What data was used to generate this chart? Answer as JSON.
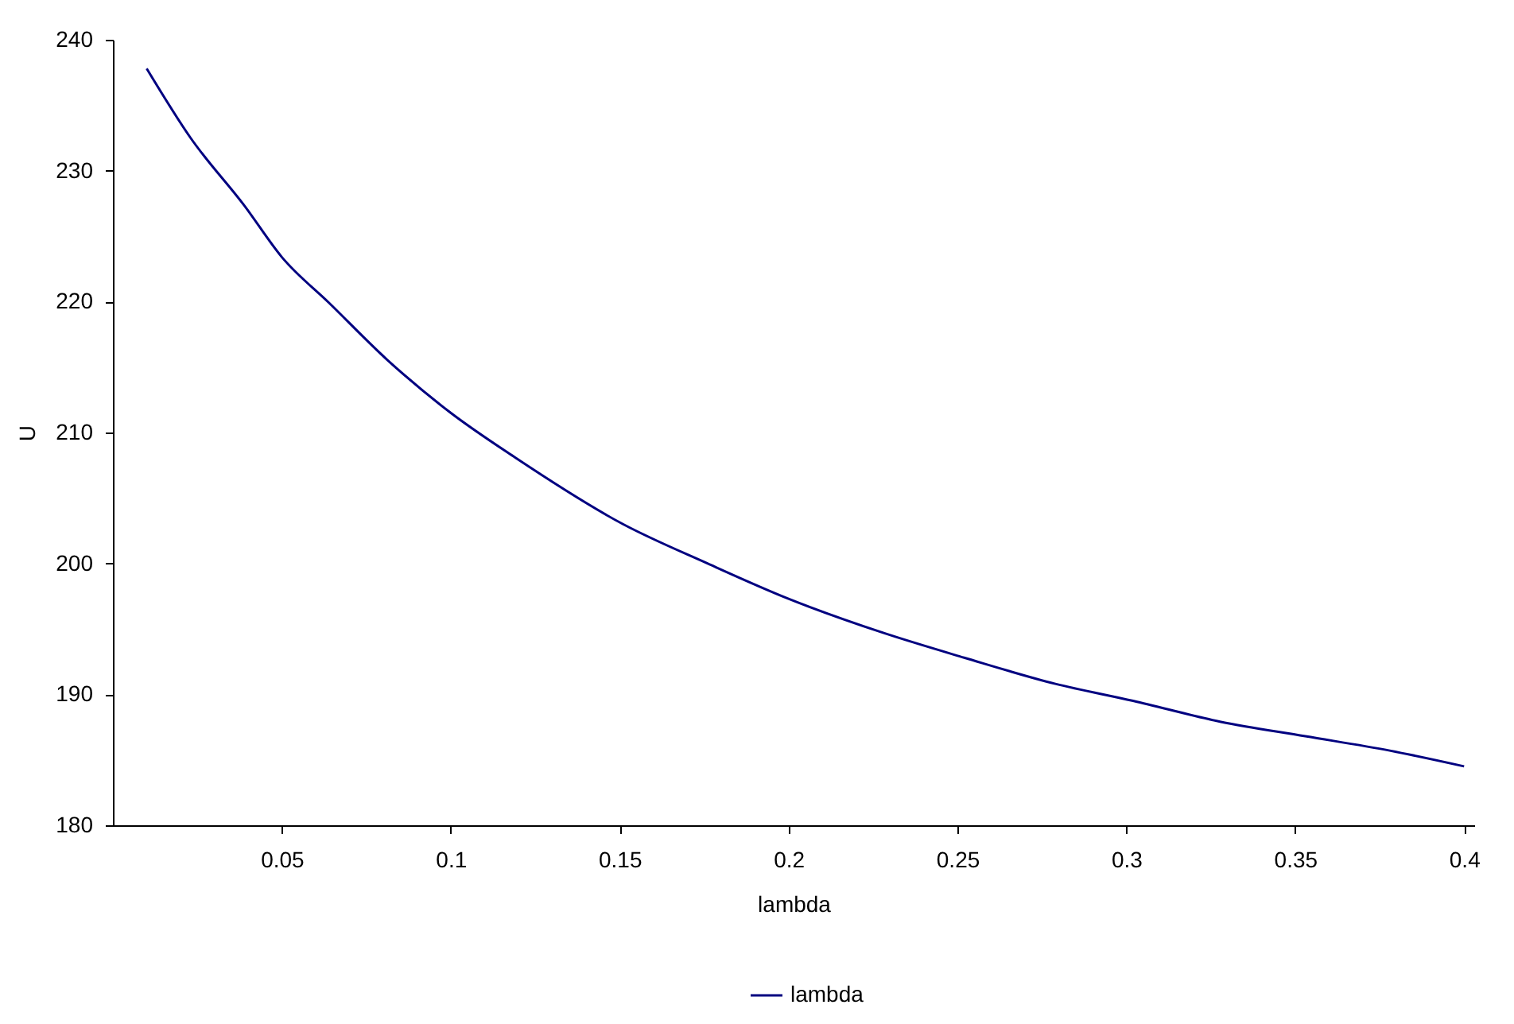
{
  "chart_data": {
    "type": "line",
    "xlabel": "lambda",
    "ylabel": "U",
    "x": [
      0.01,
      0.023,
      0.039,
      0.05,
      0.064,
      0.081,
      0.1,
      0.119,
      0.151,
      0.176,
      0.2,
      0.228,
      0.252,
      0.279,
      0.302,
      0.328,
      0.353,
      0.378,
      0.4
    ],
    "series": [
      {
        "name": "lambda",
        "color": "#000080",
        "values": [
          237.8,
          232.5,
          227.3,
          223.4,
          219.9,
          215.6,
          211.5,
          208.1,
          203.0,
          200.0,
          197.3,
          194.7,
          192.8,
          190.8,
          189.5,
          187.9,
          186.8,
          185.7,
          184.5
        ]
      }
    ],
    "xlim": [
      0,
      0.403
    ],
    "xticks": [
      0.05,
      0.1,
      0.15,
      0.2,
      0.25,
      0.3,
      0.35,
      0.4
    ],
    "ylim": [
      180,
      240
    ],
    "yticks": [
      180,
      190,
      200,
      210,
      220,
      230,
      240
    ],
    "grid": false,
    "legend": "bottom",
    "marker": "none",
    "line_style": "solid"
  }
}
